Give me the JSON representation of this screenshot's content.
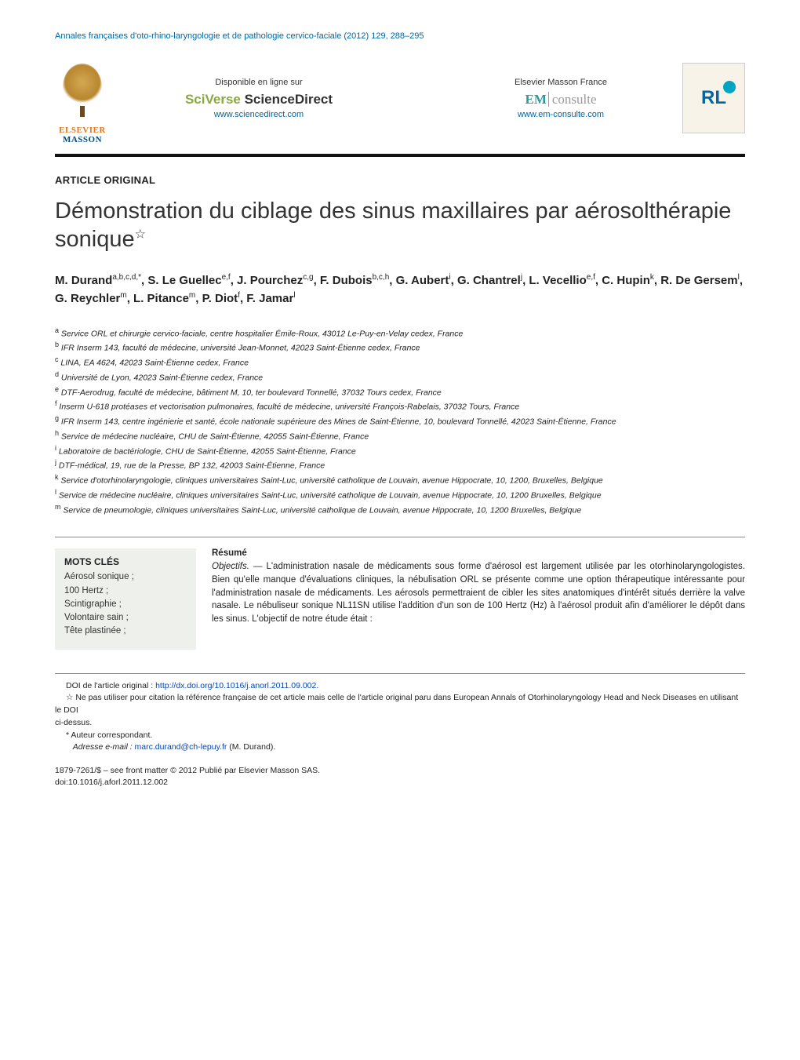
{
  "journal_header": "Annales françaises d'oto-rhino-laryngologie et de pathologie cervico-faciale (2012) 129, 288–295",
  "header": {
    "elsevier": "ELSEVIER",
    "masson": "MASSON",
    "sd_available": "Disponible en ligne sur",
    "sd_sciverse": "SciVerse",
    "sd_sciencedirect": " ScienceDirect",
    "sd_url": "www.sciencedirect.com",
    "em_title": "Elsevier Masson France",
    "em_em": "EM",
    "em_consulte": "consulte",
    "em_url": "www.em-consulte.com",
    "orl": "RL"
  },
  "article_type": "ARTICLE ORIGINAL",
  "title": "Démonstration du ciblage des sinus maxillaires par aérosolthérapie sonique",
  "title_star": "☆",
  "authors_html": "M. Durand<sup>a,b,c,d,*</sup>, S. Le Guellec<sup>e,f</sup>, J. Pourchez<sup>c,g</sup>, F. Dubois<sup>b,c,h</sup>, G. Aubert<sup>i</sup>, G. Chantrel<sup>j</sup>, L. Vecellio<sup>e,f</sup>, C. Hupin<sup>k</sup>, R. De Gersem<sup>l</sup>, G. Reychler<sup>m</sup>, L. Pitance<sup>m</sup>, P. Diot<sup>f</sup>, F. Jamar<sup>l</sup>",
  "affiliations": [
    "<sup>a</sup> Service ORL et chirurgie cervico-faciale, centre hospitalier Émile-Roux, 43012 Le-Puy-en-Velay cedex, France",
    "<sup>b</sup> IFR Inserm 143, faculté de médecine, université Jean-Monnet, 42023 Saint-Étienne cedex, France",
    "<sup>c</sup> LINA, EA 4624, 42023 Saint-Étienne cedex, France",
    "<sup>d</sup> Université de Lyon, 42023 Saint-Étienne cedex, France",
    "<sup>e</sup> DTF-Aerodrug, faculté de médecine, bâtiment M, 10, ter boulevard Tonnellé, 37032 Tours cedex, France",
    "<sup>f</sup> Inserm U-618 protéases et vectorisation pulmonaires, faculté de médecine, université François-Rabelais, 37032 Tours, France",
    "<sup>g</sup> IFR Inserm 143, centre ingénierie et santé, école nationale supérieure des Mines de Saint-Étienne, 10, boulevard Tonnellé, 42023 Saint-Étienne, France",
    "<sup>h</sup> Service de médecine nucléaire, CHU de Saint-Étienne, 42055 Saint-Étienne, France",
    "<sup>i</sup> Laboratoire de bactériologie, CHU de Saint-Étienne, 42055 Saint-Étienne, France",
    "<sup>j</sup> DTF-médical, 19, rue de la Presse, BP 132, 42003 Saint-Étienne, France",
    "<sup>k</sup> Service d'otorhinolaryngologie, cliniques universitaires Saint-Luc, université catholique de Louvain, avenue Hippocrate, 10, 1200, Bruxelles, Belgique",
    "<sup>l</sup> Service de médecine nucléaire, cliniques universitaires Saint-Luc, université catholique de Louvain, avenue Hippocrate, 10, 1200 Bruxelles, Belgique",
    "<sup>m</sup> Service de pneumologie, cliniques universitaires Saint-Luc, université catholique de Louvain, avenue Hippocrate, 10, 1200 Bruxelles, Belgique"
  ],
  "keywords": {
    "head": "MOTS CLÉS",
    "items": [
      "Aérosol sonique ;",
      "100 Hertz ;",
      "Scintigraphie ;",
      "Volontaire sain ;",
      "Tête plastinée ;"
    ]
  },
  "abstract": {
    "head": "Résumé",
    "label": "Objectifs. —",
    "text": " L'administration nasale de médicaments sous forme d'aérosol est largement utilisée par les otorhinolaryngologistes. Bien qu'elle manque d'évaluations cliniques, la nébulisation ORL se présente comme une option thérapeutique intéressante pour l'administration nasale de médicaments. Les aérosols permettraient de cibler les sites anatomiques d'intérêt situés derrière la valve nasale. Le nébuliseur sonique NL11SN utilise l'addition d'un son de 100 Hertz (Hz) à l'aérosol produit afin d'améliorer le dépôt dans les sinus. L'objectif de notre étude était :"
  },
  "footnotes": {
    "doi_label": "DOI de l'article original : ",
    "doi_link": "http://dx.doi.org/10.1016/j.anorl.2011.09.002",
    "doi_period": ".",
    "note1": "☆ Ne pas utiliser pour citation la référence française de cet article mais celle de l'article original paru dans European Annals of Otorhinolaryngology Head and Neck Diseases en utilisant le DOI",
    "note1b": "ci-dessus.",
    "corr": "* Auteur correspondant.",
    "email_label": "Adresse e-mail : ",
    "email_link": "marc.durand@ch-lepuy.fr",
    "email_suffix": " (M. Durand)."
  },
  "footer": {
    "line1": "1879-7261/$ – see front matter © 2012 Publié par Elsevier Masson SAS.",
    "line2": "doi:10.1016/j.aforl.2011.12.002"
  },
  "colors": {
    "link": "#0645ad",
    "header_blue": "#0066a0",
    "elsevier_orange": "#e67817",
    "masson_blue": "#004a7c",
    "sciverse_green": "#8aaa3b",
    "em_teal": "#2b9b9b",
    "kw_bg": "#eef0ec"
  }
}
